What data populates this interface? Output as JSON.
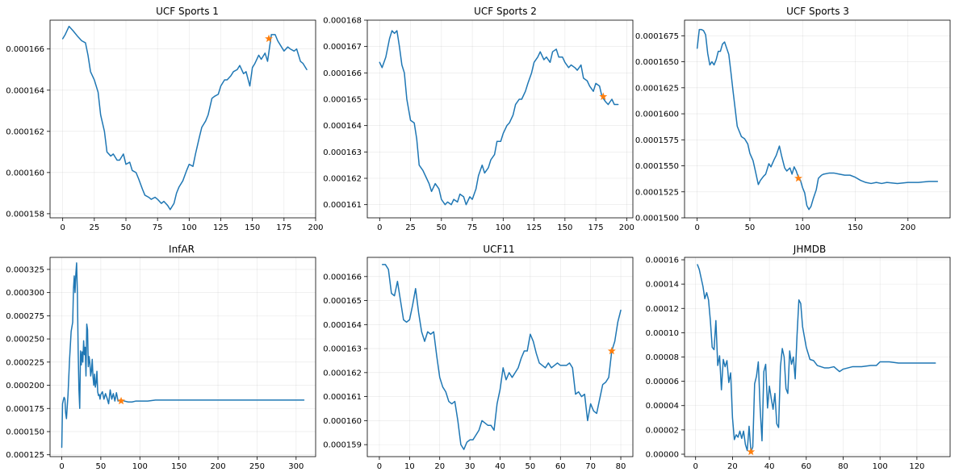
{
  "colors": {
    "line": "#1f77b4",
    "marker": "#ff7f0e",
    "grid": "#b0b0b0"
  },
  "chart_data": [
    {
      "type": "line",
      "title": "UCF Sports 1",
      "xlim": [
        -10,
        200
      ],
      "ylim": [
        0.0001578,
        0.0001674
      ],
      "xticks": [
        0,
        25,
        50,
        75,
        100,
        125,
        150,
        175,
        200
      ],
      "xtick_labels": [
        "0",
        "25",
        "50",
        "75",
        "100",
        "125",
        "150",
        "175",
        "200"
      ],
      "yticks": [
        0.000158,
        0.00016,
        0.000162,
        0.000164,
        0.000166
      ],
      "ytick_labels": [
        "0.000158",
        "0.000160",
        "0.000162",
        "0.000164",
        "0.000166"
      ],
      "grid": true,
      "x": [
        0,
        2,
        5,
        8,
        12,
        15,
        18,
        20,
        22,
        25,
        28,
        30,
        33,
        35,
        38,
        40,
        43,
        45,
        48,
        50,
        53,
        55,
        58,
        60,
        63,
        65,
        68,
        70,
        73,
        75,
        78,
        80,
        83,
        85,
        88,
        90,
        92,
        95,
        98,
        100,
        103,
        105,
        108,
        110,
        113,
        115,
        118,
        120,
        123,
        125,
        128,
        130,
        133,
        135,
        138,
        140,
        143,
        145,
        148,
        150,
        152,
        155,
        157,
        160,
        162,
        165,
        168,
        170,
        173,
        175,
        178,
        180,
        183,
        185,
        188,
        190,
        193
      ],
      "y": [
        0.0001665,
        0.0001667,
        0.0001671,
        0.0001669,
        0.0001666,
        0.0001664,
        0.0001663,
        0.0001657,
        0.0001649,
        0.0001645,
        0.0001639,
        0.0001628,
        0.000162,
        0.000161,
        0.0001608,
        0.0001609,
        0.0001606,
        0.0001606,
        0.0001609,
        0.0001604,
        0.0001605,
        0.0001601,
        0.00016,
        0.0001597,
        0.0001592,
        0.0001589,
        0.0001588,
        0.0001587,
        0.0001588,
        0.0001587,
        0.0001585,
        0.0001586,
        0.0001584,
        0.0001582,
        0.0001585,
        0.000159,
        0.0001593,
        0.0001596,
        0.0001601,
        0.0001604,
        0.0001603,
        0.0001609,
        0.0001617,
        0.0001622,
        0.0001625,
        0.0001628,
        0.0001636,
        0.0001637,
        0.0001638,
        0.0001642,
        0.0001645,
        0.0001645,
        0.0001647,
        0.0001649,
        0.000165,
        0.0001652,
        0.0001648,
        0.0001649,
        0.0001642,
        0.0001651,
        0.0001653,
        0.0001657,
        0.0001655,
        0.0001658,
        0.0001654,
        0.0001667,
        0.0001667,
        0.0001664,
        0.0001661,
        0.0001659,
        0.0001661,
        0.000166,
        0.0001659,
        0.000166,
        0.0001654,
        0.0001653,
        0.000165
      ],
      "marker": {
        "x": 163,
        "y": 0.0001665
      }
    },
    {
      "type": "line",
      "title": "UCF Sports 2",
      "xlim": [
        -10,
        205
      ],
      "ylim": [
        0.0001605,
        0.000168
      ],
      "xticks": [
        0,
        25,
        50,
        75,
        100,
        125,
        150,
        175,
        200
      ],
      "xtick_labels": [
        "0",
        "25",
        "50",
        "75",
        "100",
        "125",
        "150",
        "175",
        "200"
      ],
      "yticks": [
        0.000161,
        0.000162,
        0.000163,
        0.000164,
        0.000165,
        0.000166,
        0.000167,
        0.000168
      ],
      "ytick_labels": [
        "0.000161",
        "0.000162",
        "0.000163",
        "0.000164",
        "0.000165",
        "0.000166",
        "0.000167",
        "0.000168"
      ],
      "grid": true,
      "x": [
        0,
        2,
        5,
        8,
        10,
        12,
        14,
        16,
        18,
        20,
        22,
        25,
        28,
        30,
        32,
        35,
        38,
        40,
        42,
        45,
        48,
        50,
        53,
        55,
        58,
        60,
        63,
        65,
        68,
        70,
        73,
        75,
        78,
        80,
        83,
        85,
        88,
        90,
        93,
        95,
        98,
        100,
        103,
        105,
        108,
        110,
        113,
        115,
        118,
        120,
        123,
        125,
        128,
        130,
        133,
        135,
        138,
        140,
        143,
        145,
        148,
        150,
        153,
        155,
        158,
        160,
        163,
        165,
        168,
        170,
        173,
        175,
        178,
        180,
        183,
        185,
        188,
        190,
        193
      ],
      "y": [
        0.0001664,
        0.0001662,
        0.0001666,
        0.0001673,
        0.0001676,
        0.0001675,
        0.0001676,
        0.000167,
        0.0001663,
        0.000166,
        0.000165,
        0.0001642,
        0.0001641,
        0.0001635,
        0.0001625,
        0.0001623,
        0.000162,
        0.0001618,
        0.0001615,
        0.0001618,
        0.0001616,
        0.0001612,
        0.000161,
        0.0001611,
        0.000161,
        0.0001612,
        0.0001611,
        0.0001614,
        0.0001613,
        0.000161,
        0.0001613,
        0.0001612,
        0.0001616,
        0.0001621,
        0.0001625,
        0.0001622,
        0.0001624,
        0.0001627,
        0.0001629,
        0.0001634,
        0.0001634,
        0.0001637,
        0.000164,
        0.0001641,
        0.0001644,
        0.0001648,
        0.000165,
        0.000165,
        0.0001653,
        0.0001656,
        0.000166,
        0.0001664,
        0.0001666,
        0.0001668,
        0.0001665,
        0.0001666,
        0.0001664,
        0.0001668,
        0.0001669,
        0.0001666,
        0.0001666,
        0.0001664,
        0.0001662,
        0.0001663,
        0.0001662,
        0.0001661,
        0.0001663,
        0.0001658,
        0.0001657,
        0.0001655,
        0.0001653,
        0.0001656,
        0.0001655,
        0.0001651,
        0.0001649,
        0.0001648,
        0.000165,
        0.0001648,
        0.0001648
      ],
      "marker": {
        "x": 181,
        "y": 0.0001651
      }
    },
    {
      "type": "line",
      "title": "UCF Sports 3",
      "xlim": [
        -12,
        240
      ],
      "ylim": [
        0.00015,
        0.000169
      ],
      "xticks": [
        0,
        50,
        100,
        150,
        200
      ],
      "xtick_labels": [
        "0",
        "50",
        "100",
        "150",
        "200"
      ],
      "yticks": [
        0.00015,
        0.0001525,
        0.000155,
        0.0001575,
        0.00016,
        0.0001625,
        0.000165,
        0.0001675
      ],
      "ytick_labels": [
        "0.0001500",
        "0.0001525",
        "0.0001550",
        "0.0001575",
        "0.0001600",
        "0.0001625",
        "0.0001650",
        "0.0001675"
      ],
      "grid": true,
      "x": [
        0,
        2,
        4,
        6,
        8,
        10,
        12,
        14,
        16,
        18,
        20,
        22,
        24,
        26,
        28,
        30,
        32,
        34,
        36,
        38,
        40,
        42,
        45,
        48,
        50,
        53,
        55,
        58,
        60,
        63,
        65,
        68,
        70,
        73,
        75,
        78,
        80,
        83,
        85,
        88,
        90,
        92,
        94,
        96,
        98,
        100,
        102,
        104,
        106,
        108,
        110,
        113,
        115,
        118,
        120,
        125,
        130,
        135,
        140,
        145,
        150,
        155,
        160,
        165,
        170,
        175,
        180,
        190,
        200,
        210,
        220,
        228
      ],
      "y": [
        0.0001663,
        0.0001681,
        0.0001681,
        0.000168,
        0.0001676,
        0.0001658,
        0.0001647,
        0.000165,
        0.0001647,
        0.0001652,
        0.000166,
        0.000166,
        0.0001667,
        0.0001669,
        0.0001663,
        0.0001657,
        0.000164,
        0.0001622,
        0.0001605,
        0.0001588,
        0.0001583,
        0.0001578,
        0.0001576,
        0.0001571,
        0.0001562,
        0.0001555,
        0.0001546,
        0.0001532,
        0.0001536,
        0.000154,
        0.0001542,
        0.0001552,
        0.0001549,
        0.0001556,
        0.000156,
        0.0001569,
        0.000156,
        0.0001548,
        0.0001545,
        0.0001548,
        0.0001542,
        0.0001549,
        0.0001545,
        0.0001539,
        0.0001536,
        0.0001529,
        0.0001524,
        0.0001512,
        0.0001508,
        0.0001511,
        0.0001518,
        0.0001527,
        0.0001538,
        0.0001541,
        0.0001542,
        0.0001543,
        0.0001543,
        0.0001542,
        0.0001541,
        0.0001541,
        0.0001539,
        0.0001536,
        0.0001534,
        0.0001533,
        0.0001534,
        0.0001533,
        0.0001534,
        0.0001533,
        0.0001534,
        0.0001534,
        0.0001535,
        0.0001535
      ],
      "marker": {
        "x": 96,
        "y": 0.0001538
      }
    },
    {
      "type": "line",
      "title": "InfAR",
      "xlim": [
        -15,
        325
      ],
      "ylim": [
        0.000123,
        0.000338
      ],
      "xticks": [
        0,
        50,
        100,
        150,
        200,
        250,
        300
      ],
      "xtick_labels": [
        "0",
        "50",
        "100",
        "150",
        "200",
        "250",
        "300"
      ],
      "yticks": [
        0.000125,
        0.00015,
        0.000175,
        0.0002,
        0.000225,
        0.00025,
        0.000275,
        0.0003,
        0.000325
      ],
      "ytick_labels": [
        "0.000125",
        "0.000150",
        "0.000175",
        "0.000200",
        "0.000225",
        "0.000250",
        "0.000275",
        "0.000300",
        "0.000325"
      ],
      "grid": true,
      "x": [
        0,
        1,
        2,
        3,
        4,
        5,
        6,
        8,
        10,
        12,
        14,
        15,
        16,
        17,
        18,
        19,
        20,
        21,
        22,
        23,
        24,
        25,
        26,
        27,
        28,
        29,
        30,
        31,
        32,
        33,
        34,
        35,
        36,
        37,
        38,
        39,
        40,
        41,
        42,
        43,
        44,
        45,
        46,
        47,
        48,
        49,
        50,
        52,
        54,
        56,
        58,
        60,
        62,
        64,
        66,
        68,
        70,
        72,
        74,
        76,
        78,
        80,
        85,
        90,
        95,
        100,
        110,
        120,
        140,
        160,
        200,
        250,
        300,
        310
      ],
      "y": [
        0.000133,
        0.00018,
        0.000184,
        0.000187,
        0.000185,
        0.00017,
        0.000164,
        0.00019,
        0.000228,
        0.000258,
        0.000268,
        0.000304,
        0.000318,
        0.0003,
        0.00032,
        0.000332,
        0.0003,
        0.000236,
        0.000195,
        0.000175,
        0.000237,
        0.000222,
        0.000236,
        0.000225,
        0.000248,
        0.000233,
        0.000241,
        0.00021,
        0.000266,
        0.00026,
        0.00022,
        0.000231,
        0.000224,
        0.00021,
        0.000215,
        0.000228,
        0.000209,
        0.0002,
        0.000212,
        0.000198,
        0.000203,
        0.000215,
        0.000193,
        0.000189,
        0.00019,
        0.000185,
        0.00019,
        0.000193,
        0.000185,
        0.000191,
        0.000186,
        0.00018,
        0.000195,
        0.000185,
        0.000191,
        0.000183,
        0.000192,
        0.000183,
        0.000184,
        0.000182,
        0.000184,
        0.000183,
        0.000182,
        0.000182,
        0.000183,
        0.000183,
        0.000183,
        0.000184,
        0.000184,
        0.000184,
        0.000184,
        0.000184,
        0.000184,
        0.000184
      ],
      "marker": {
        "x": 76,
        "y": 0.000183
      }
    },
    {
      "type": "line",
      "title": "UCF11",
      "xlim": [
        -4,
        84
      ],
      "ylim": [
        0.0001585,
        0.0001668
      ],
      "xticks": [
        0,
        10,
        20,
        30,
        40,
        50,
        60,
        70,
        80
      ],
      "xtick_labels": [
        "0",
        "10",
        "20",
        "30",
        "40",
        "50",
        "60",
        "70",
        "80"
      ],
      "yticks": [
        0.000159,
        0.00016,
        0.000161,
        0.000162,
        0.000163,
        0.000164,
        0.000165,
        0.000166
      ],
      "ytick_labels": [
        "0.000159",
        "0.000160",
        "0.000161",
        "0.000162",
        "0.000163",
        "0.000164",
        "0.000165",
        "0.000166"
      ],
      "grid": true,
      "x": [
        1,
        2,
        3,
        4,
        5,
        6,
        7,
        8,
        9,
        10,
        11,
        12,
        13,
        14,
        15,
        16,
        17,
        18,
        19,
        20,
        21,
        22,
        23,
        24,
        25,
        26,
        27,
        28,
        29,
        30,
        31,
        32,
        33,
        34,
        35,
        36,
        37,
        38,
        39,
        40,
        41,
        42,
        43,
        44,
        45,
        46,
        47,
        48,
        49,
        50,
        51,
        52,
        53,
        54,
        55,
        56,
        57,
        58,
        59,
        60,
        61,
        62,
        63,
        64,
        65,
        66,
        67,
        68,
        69,
        70,
        71,
        72,
        73,
        74,
        75,
        76,
        77,
        78,
        79,
        80
      ],
      "y": [
        0.0001665,
        0.0001665,
        0.0001663,
        0.0001653,
        0.0001652,
        0.0001658,
        0.000165,
        0.0001642,
        0.0001641,
        0.0001642,
        0.0001648,
        0.0001655,
        0.0001645,
        0.0001637,
        0.0001633,
        0.0001637,
        0.0001636,
        0.0001637,
        0.0001627,
        0.0001618,
        0.0001614,
        0.0001612,
        0.0001608,
        0.0001607,
        0.0001608,
        0.00016,
        0.000159,
        0.0001588,
        0.0001591,
        0.0001592,
        0.0001592,
        0.0001594,
        0.0001596,
        0.00016,
        0.0001599,
        0.0001598,
        0.0001598,
        0.0001596,
        0.0001607,
        0.0001613,
        0.0001622,
        0.0001617,
        0.000162,
        0.0001618,
        0.000162,
        0.0001622,
        0.0001626,
        0.0001629,
        0.0001629,
        0.0001636,
        0.0001633,
        0.0001628,
        0.0001624,
        0.0001623,
        0.0001622,
        0.0001624,
        0.0001622,
        0.0001623,
        0.0001624,
        0.0001623,
        0.0001623,
        0.0001623,
        0.0001624,
        0.0001622,
        0.0001611,
        0.0001612,
        0.000161,
        0.0001611,
        0.00016,
        0.0001607,
        0.0001604,
        0.0001603,
        0.0001609,
        0.0001615,
        0.0001616,
        0.0001618,
        0.0001629,
        0.0001633,
        0.0001641,
        0.0001646
      ],
      "marker": {
        "x": 77,
        "y": 0.0001629
      }
    },
    {
      "type": "line",
      "title": "JHMDB",
      "xlim": [
        -6,
        138
      ],
      "ylim": [
        -2e-06,
        0.000162
      ],
      "xticks": [
        0,
        20,
        40,
        60,
        80,
        100,
        120
      ],
      "xtick_labels": [
        "0",
        "20",
        "40",
        "60",
        "80",
        "100",
        "120"
      ],
      "yticks": [
        0,
        2e-05,
        4e-05,
        6e-05,
        8e-05,
        0.0001,
        0.00012,
        0.00014,
        0.00016
      ],
      "ytick_labels": [
        "0.00000",
        "0.00002",
        "0.00004",
        "0.00006",
        "0.00008",
        "0.00010",
        "0.00012",
        "0.00014",
        "0.00016"
      ],
      "grid": true,
      "x": [
        1,
        2,
        3,
        4,
        5,
        6,
        7,
        8,
        9,
        10,
        11,
        12,
        13,
        14,
        15,
        16,
        17,
        18,
        19,
        20,
        21,
        22,
        23,
        24,
        25,
        26,
        27,
        28,
        29,
        30,
        31,
        32,
        33,
        34,
        35,
        36,
        37,
        38,
        39,
        40,
        41,
        42,
        43,
        44,
        45,
        46,
        47,
        48,
        49,
        50,
        51,
        52,
        53,
        54,
        55,
        56,
        57,
        58,
        60,
        62,
        64,
        66,
        68,
        70,
        72,
        75,
        78,
        80,
        85,
        90,
        95,
        98,
        100,
        105,
        110,
        115,
        120,
        125,
        130
      ],
      "y": [
        0.000156,
        0.000152,
        0.000145,
        0.000138,
        0.000128,
        0.000133,
        0.000127,
        0.00011,
        8.8e-05,
        8.6e-05,
        0.00011,
        7.3e-05,
        8.1e-05,
        5.3e-05,
        7.8e-05,
        7.2e-05,
        7.7e-05,
        5.9e-05,
        6.7e-05,
        3e-05,
        1.2e-05,
        1.6e-05,
        1.4e-05,
        1.9e-05,
        1.3e-05,
        1.9e-05,
        8e-06,
        3e-06,
        2.3e-05,
        2e-06,
        6e-06,
        5.8e-05,
        6.4e-05,
        7.6e-05,
        3.8e-05,
        1.1e-05,
        6.8e-05,
        7.4e-05,
        3.8e-05,
        5.6e-05,
        4.6e-05,
        3.7e-05,
        5e-05,
        2.5e-05,
        2.2e-05,
        7.2e-05,
        8.7e-05,
        8e-05,
        5.4e-05,
        5e-05,
        8.5e-05,
        7.4e-05,
        8e-05,
        6.2e-05,
        9.8e-05,
        0.000127,
        0.000124,
        0.000105,
        8.8e-05,
        7.8e-05,
        7.7e-05,
        7.3e-05,
        7.2e-05,
        7.1e-05,
        7.1e-05,
        7.2e-05,
        6.8e-05,
        7e-05,
        7.2e-05,
        7.2e-05,
        7.3e-05,
        7.3e-05,
        7.6e-05,
        7.6e-05,
        7.5e-05,
        7.5e-05,
        7.5e-05,
        7.5e-05,
        7.5e-05
      ],
      "marker": {
        "x": 30,
        "y": 2e-06
      }
    }
  ]
}
